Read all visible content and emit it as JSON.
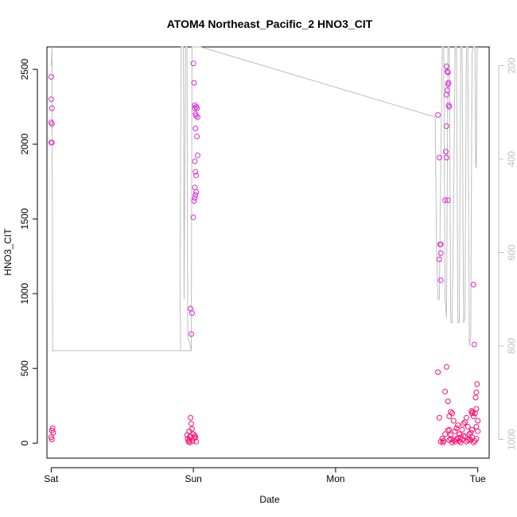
{
  "chart_data": {
    "type": "scatter",
    "title": "ATOM4 Northeast_Pacific_2 HNO3_CIT",
    "xlabel": "Date",
    "ylabel": "HNO3_CIT",
    "x_ticks": [
      "Sat",
      "Sun",
      "Mon",
      "Tue"
    ],
    "y_ticks": [
      0,
      500,
      1000,
      1500,
      2000,
      2500
    ],
    "y_right_ticks": [
      200,
      400,
      600,
      800,
      1000
    ],
    "xlim_days": [
      -0.03,
      3.08
    ],
    "ylim": [
      -100,
      2650
    ],
    "y_right_lim": [
      1040,
      160
    ],
    "colors": {
      "points_low": "#ff0a6e",
      "points_high": "#d829d8",
      "pressure_line": "#bebebe",
      "right_axis": "#bfbfbf"
    },
    "pressure_series": [
      [
        0.0,
        200
      ],
      [
        0.005,
        20
      ],
      [
        0.01,
        810
      ],
      [
        0.99,
        810
      ],
      [
        0.99,
        810
      ],
      [
        0.91,
        810
      ],
      [
        0.905,
        650
      ],
      [
        0.915,
        150
      ],
      [
        0.93,
        150
      ],
      [
        0.935,
        700
      ],
      [
        0.945,
        150
      ],
      [
        0.955,
        150
      ],
      [
        0.96,
        780
      ],
      [
        0.97,
        790
      ],
      [
        0.985,
        810
      ],
      [
        0.99,
        160
      ],
      [
        1.05,
        160
      ],
      [
        2.7,
        310
      ],
      [
        2.71,
        600
      ],
      [
        2.72,
        700
      ],
      [
        2.73,
        700
      ],
      [
        2.74,
        400
      ],
      [
        2.75,
        160
      ],
      [
        2.76,
        160
      ],
      [
        2.77,
        700
      ],
      [
        2.78,
        740
      ],
      [
        2.79,
        160
      ],
      [
        2.8,
        160
      ],
      [
        2.81,
        750
      ],
      [
        2.82,
        750
      ],
      [
        2.83,
        500
      ],
      [
        2.84,
        160
      ],
      [
        2.85,
        160
      ],
      [
        2.86,
        750
      ],
      [
        2.87,
        750
      ],
      [
        2.88,
        160
      ],
      [
        2.89,
        160
      ],
      [
        2.9,
        750
      ],
      [
        2.91,
        740
      ],
      [
        2.92,
        160
      ],
      [
        2.93,
        160
      ],
      [
        2.94,
        800
      ],
      [
        2.95,
        780
      ],
      [
        2.96,
        170
      ],
      [
        2.97,
        160
      ],
      [
        2.98,
        160
      ],
      [
        2.985,
        410
      ],
      [
        2.99,
        420
      ],
      [
        2.995,
        170
      ],
      [
        3.0,
        160
      ]
    ],
    "series": [
      {
        "values": [
          [
            0.0,
            2450
          ],
          [
            0.0,
            2300
          ],
          [
            0.005,
            2240
          ],
          [
            0.0,
            2145
          ],
          [
            0.005,
            2135
          ],
          [
            0.0,
            2010
          ],
          [
            0.005,
            2010
          ],
          [
            0.01,
            100
          ],
          [
            0.005,
            85
          ],
          [
            0.015,
            70
          ],
          [
            0.0,
            40
          ],
          [
            0.005,
            25
          ],
          [
            0.98,
            900
          ],
          [
            0.985,
            730
          ],
          [
            0.99,
            870
          ],
          [
            0.97,
            20
          ],
          [
            0.975,
            45
          ],
          [
            0.98,
            170
          ],
          [
            0.985,
            130
          ],
          [
            0.99,
            95
          ],
          [
            1.0,
            60
          ],
          [
            0.965,
            10
          ],
          [
            0.96,
            30
          ],
          [
            0.97,
            80
          ],
          [
            0.975,
            5
          ],
          [
            0.995,
            15
          ],
          [
            1.005,
            35
          ],
          [
            1.01,
            50
          ],
          [
            1.015,
            40
          ],
          [
            1.02,
            10
          ],
          [
            0.955,
            55
          ],
          [
            1.0,
            2540
          ],
          [
            1.005,
            2410
          ],
          [
            1.01,
            2260
          ],
          [
            1.01,
            2240
          ],
          [
            1.02,
            2250
          ],
          [
            1.025,
            2240
          ],
          [
            1.015,
            2200
          ],
          [
            1.02,
            2190
          ],
          [
            1.03,
            2180
          ],
          [
            1.015,
            2105
          ],
          [
            1.025,
            2050
          ],
          [
            1.03,
            1925
          ],
          [
            1.01,
            1885
          ],
          [
            1.015,
            1815
          ],
          [
            1.02,
            1790
          ],
          [
            1.01,
            1710
          ],
          [
            1.02,
            1680
          ],
          [
            1.015,
            1660
          ],
          [
            1.01,
            1640
          ],
          [
            1.005,
            1620
          ],
          [
            1.0,
            1510
          ],
          [
            2.72,
            2195
          ],
          [
            2.73,
            1910
          ],
          [
            2.74,
            1330
          ],
          [
            2.735,
            1330
          ],
          [
            2.74,
            1270
          ],
          [
            2.73,
            1230
          ],
          [
            2.74,
            1090
          ],
          [
            2.72,
            475
          ],
          [
            2.73,
            170
          ],
          [
            2.74,
            10
          ],
          [
            2.75,
            30
          ],
          [
            2.755,
            5
          ],
          [
            2.78,
            2520
          ],
          [
            2.785,
            2485
          ],
          [
            2.79,
            2480
          ],
          [
            2.795,
            2410
          ],
          [
            2.79,
            2400
          ],
          [
            2.785,
            2360
          ],
          [
            2.78,
            2330
          ],
          [
            2.8,
            2250
          ],
          [
            2.795,
            2260
          ],
          [
            2.78,
            2120
          ],
          [
            2.775,
            1950
          ],
          [
            2.78,
            1910
          ],
          [
            2.77,
            1625
          ],
          [
            2.79,
            1625
          ],
          [
            2.77,
            345
          ],
          [
            2.78,
            510
          ],
          [
            2.79,
            280
          ],
          [
            2.8,
            180
          ],
          [
            2.81,
            210
          ],
          [
            2.82,
            200
          ],
          [
            2.83,
            150
          ],
          [
            2.84,
            80
          ],
          [
            2.85,
            100
          ],
          [
            2.86,
            120
          ],
          [
            2.87,
            60
          ],
          [
            2.88,
            40
          ],
          [
            2.89,
            90
          ],
          [
            2.9,
            130
          ],
          [
            2.91,
            140
          ],
          [
            2.92,
            170
          ],
          [
            2.93,
            110
          ],
          [
            2.94,
            60
          ],
          [
            2.95,
            20
          ],
          [
            2.96,
            40
          ],
          [
            2.97,
            5
          ],
          [
            2.98,
            15
          ],
          [
            2.99,
            30
          ],
          [
            3.0,
            80
          ],
          [
            2.81,
            30
          ],
          [
            2.82,
            5
          ],
          [
            2.83,
            20
          ],
          [
            2.84,
            10
          ],
          [
            2.86,
            35
          ],
          [
            2.87,
            15
          ],
          [
            2.88,
            5
          ],
          [
            2.89,
            25
          ],
          [
            2.91,
            45
          ],
          [
            2.92,
            10
          ],
          [
            2.93,
            20
          ],
          [
            2.95,
            70
          ],
          [
            2.96,
            90
          ],
          [
            2.97,
            180
          ],
          [
            2.98,
            200
          ],
          [
            2.99,
            230
          ],
          [
            2.985,
            305
          ],
          [
            2.99,
            340
          ],
          [
            2.995,
            395
          ],
          [
            2.97,
            1060
          ],
          [
            2.975,
            660
          ],
          [
            2.96,
            200
          ],
          [
            2.965,
            210
          ],
          [
            2.955,
            215
          ],
          [
            2.77,
            60
          ],
          [
            2.79,
            85
          ],
          [
            2.8,
            20
          ],
          [
            2.81,
            55
          ],
          [
            2.85,
            25
          ],
          [
            2.9,
            50
          ],
          [
            2.94,
            30
          ],
          [
            2.99,
            110
          ],
          [
            3.0,
            150
          ],
          [
            2.76,
            15
          ],
          [
            2.8,
            90
          ]
        ]
      }
    ]
  }
}
